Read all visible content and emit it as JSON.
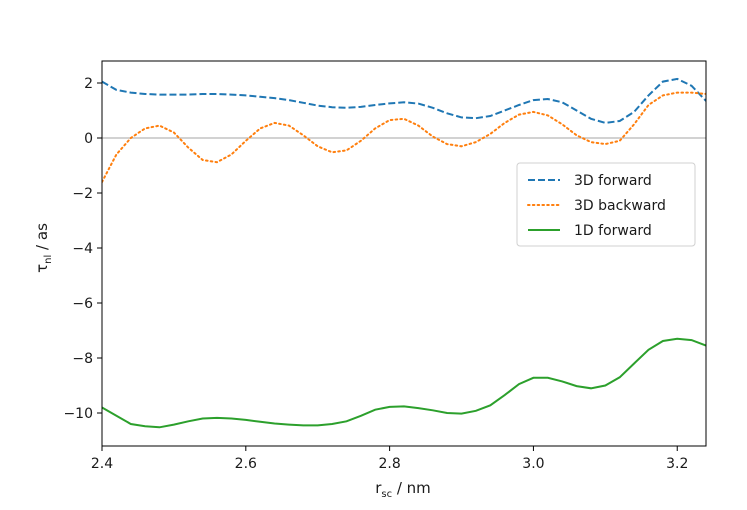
{
  "chart_data": {
    "type": "line",
    "title": "",
    "xlabel": {
      "main": "r",
      "sub": "sc",
      "rest": " / nm"
    },
    "ylabel": {
      "main": "τ",
      "sub": "nl",
      "rest": " / as"
    },
    "xlim": [
      2.4,
      3.24
    ],
    "ylim": [
      -11.2,
      2.8
    ],
    "x_ticks": [
      2.4,
      2.6,
      2.8,
      3.0,
      3.2
    ],
    "x_tick_labels": [
      "2.4",
      "2.6",
      "2.8",
      "3.0",
      "3.2"
    ],
    "y_ticks": [
      2,
      0,
      -2,
      -4,
      -6,
      -8,
      -10
    ],
    "y_tick_labels": [
      "2",
      "0",
      "−2",
      "−4",
      "−6",
      "−8",
      "−10"
    ],
    "reference_line": {
      "y": 0,
      "color": "#cccccc"
    },
    "legend_position": "center-right",
    "series": [
      {
        "name": "3D forward",
        "color": "#1f77b4",
        "style": "dashed",
        "x": [
          2.4,
          2.42,
          2.44,
          2.46,
          2.48,
          2.5,
          2.52,
          2.54,
          2.56,
          2.58,
          2.6,
          2.62,
          2.64,
          2.66,
          2.68,
          2.7,
          2.72,
          2.74,
          2.76,
          2.78,
          2.8,
          2.82,
          2.84,
          2.86,
          2.88,
          2.9,
          2.92,
          2.94,
          2.96,
          2.98,
          3.0,
          3.02,
          3.04,
          3.06,
          3.08,
          3.1,
          3.12,
          3.14,
          3.16,
          3.18,
          3.2,
          3.22,
          3.24
        ],
        "y": [
          2.05,
          1.75,
          1.65,
          1.6,
          1.58,
          1.58,
          1.58,
          1.6,
          1.6,
          1.58,
          1.55,
          1.5,
          1.45,
          1.38,
          1.28,
          1.18,
          1.12,
          1.1,
          1.13,
          1.2,
          1.26,
          1.3,
          1.25,
          1.1,
          0.9,
          0.75,
          0.72,
          0.8,
          1.0,
          1.2,
          1.38,
          1.42,
          1.3,
          1.0,
          0.7,
          0.55,
          0.62,
          0.95,
          1.55,
          2.05,
          2.15,
          1.9,
          1.35
        ]
      },
      {
        "name": "3D backward",
        "color": "#ff7f0e",
        "style": "dotted",
        "x": [
          2.4,
          2.42,
          2.44,
          2.46,
          2.48,
          2.5,
          2.52,
          2.54,
          2.56,
          2.58,
          2.6,
          2.62,
          2.64,
          2.66,
          2.68,
          2.7,
          2.72,
          2.74,
          2.76,
          2.78,
          2.8,
          2.82,
          2.84,
          2.86,
          2.88,
          2.9,
          2.92,
          2.94,
          2.96,
          2.98,
          3.0,
          3.02,
          3.04,
          3.06,
          3.08,
          3.1,
          3.12,
          3.14,
          3.16,
          3.18,
          3.2,
          3.22,
          3.24
        ],
        "y": [
          -1.6,
          -0.6,
          0.0,
          0.35,
          0.45,
          0.2,
          -0.35,
          -0.8,
          -0.88,
          -0.6,
          -0.1,
          0.35,
          0.55,
          0.45,
          0.1,
          -0.3,
          -0.52,
          -0.45,
          -0.1,
          0.35,
          0.65,
          0.7,
          0.45,
          0.05,
          -0.22,
          -0.3,
          -0.15,
          0.15,
          0.55,
          0.85,
          0.95,
          0.82,
          0.5,
          0.1,
          -0.15,
          -0.22,
          -0.1,
          0.5,
          1.2,
          1.55,
          1.65,
          1.65,
          1.6
        ]
      },
      {
        "name": "1D forward",
        "color": "#2ca02c",
        "style": "solid",
        "x": [
          2.4,
          2.42,
          2.44,
          2.46,
          2.48,
          2.5,
          2.52,
          2.54,
          2.56,
          2.58,
          2.6,
          2.62,
          2.64,
          2.66,
          2.68,
          2.7,
          2.72,
          2.74,
          2.76,
          2.78,
          2.8,
          2.82,
          2.84,
          2.86,
          2.88,
          2.9,
          2.92,
          2.94,
          2.96,
          2.98,
          3.0,
          3.02,
          3.04,
          3.06,
          3.08,
          3.1,
          3.12,
          3.14,
          3.16,
          3.18,
          3.2,
          3.22,
          3.24
        ],
        "y": [
          -9.8,
          -10.1,
          -10.4,
          -10.48,
          -10.52,
          -10.42,
          -10.3,
          -10.2,
          -10.18,
          -10.2,
          -10.25,
          -10.32,
          -10.38,
          -10.42,
          -10.45,
          -10.45,
          -10.4,
          -10.3,
          -10.1,
          -9.88,
          -9.78,
          -9.76,
          -9.82,
          -9.9,
          -10.0,
          -10.02,
          -9.92,
          -9.72,
          -9.35,
          -8.95,
          -8.72,
          -8.72,
          -8.85,
          -9.02,
          -9.1,
          -9.0,
          -8.7,
          -8.2,
          -7.7,
          -7.38,
          -7.3,
          -7.35,
          -7.55
        ]
      }
    ]
  }
}
